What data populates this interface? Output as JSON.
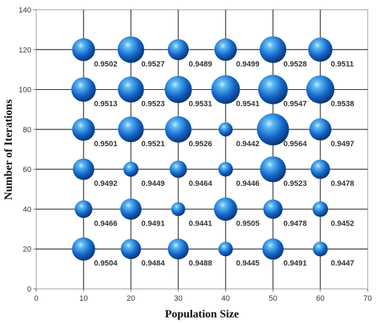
{
  "chart_data": {
    "type": "scatter",
    "xlabel": "Population Size",
    "ylabel": "Number of Iterations",
    "xlim": [
      0,
      70
    ],
    "ylim": [
      0,
      140
    ],
    "xticks": [
      "0",
      "10",
      "20",
      "30",
      "40",
      "50",
      "60",
      "70"
    ],
    "yticks": [
      "0",
      "20",
      "40",
      "60",
      "80",
      "100",
      "120",
      "140"
    ],
    "grid": true,
    "marker_color": "#1e6fc6",
    "points": [
      {
        "x": 10,
        "y": 120,
        "value": 0.9502,
        "label": "0.9502"
      },
      {
        "x": 20,
        "y": 120,
        "value": 0.9527,
        "label": "0.9527"
      },
      {
        "x": 30,
        "y": 120,
        "value": 0.9489,
        "label": "0.9489"
      },
      {
        "x": 40,
        "y": 120,
        "value": 0.9499,
        "label": "0.9499"
      },
      {
        "x": 50,
        "y": 120,
        "value": 0.9528,
        "label": "0.9528"
      },
      {
        "x": 60,
        "y": 120,
        "value": 0.9511,
        "label": "0.9511"
      },
      {
        "x": 10,
        "y": 100,
        "value": 0.9513,
        "label": "0.9513"
      },
      {
        "x": 20,
        "y": 100,
        "value": 0.9523,
        "label": "0.9523"
      },
      {
        "x": 30,
        "y": 100,
        "value": 0.9531,
        "label": "0.9531"
      },
      {
        "x": 40,
        "y": 100,
        "value": 0.9541,
        "label": "0.9541"
      },
      {
        "x": 50,
        "y": 100,
        "value": 0.9547,
        "label": "0.9547"
      },
      {
        "x": 60,
        "y": 100,
        "value": 0.9538,
        "label": "0.9538"
      },
      {
        "x": 10,
        "y": 80,
        "value": 0.9501,
        "label": "0.9501"
      },
      {
        "x": 20,
        "y": 80,
        "value": 0.9521,
        "label": "0.9521"
      },
      {
        "x": 30,
        "y": 80,
        "value": 0.9526,
        "label": "0.9526"
      },
      {
        "x": 40,
        "y": 80,
        "value": 0.9442,
        "label": "0.9442"
      },
      {
        "x": 50,
        "y": 80,
        "value": 0.9564,
        "label": "0.9564"
      },
      {
        "x": 60,
        "y": 80,
        "value": 0.9497,
        "label": "0.9497"
      },
      {
        "x": 10,
        "y": 60,
        "value": 0.9492,
        "label": "0.9492"
      },
      {
        "x": 20,
        "y": 60,
        "value": 0.9449,
        "label": "0.9449"
      },
      {
        "x": 30,
        "y": 60,
        "value": 0.9464,
        "label": "0.9464"
      },
      {
        "x": 40,
        "y": 60,
        "value": 0.9446,
        "label": "0.9446"
      },
      {
        "x": 50,
        "y": 60,
        "value": 0.9523,
        "label": "0.9523"
      },
      {
        "x": 60,
        "y": 60,
        "value": 0.9478,
        "label": "0.9478"
      },
      {
        "x": 10,
        "y": 40,
        "value": 0.9466,
        "label": "0.9466"
      },
      {
        "x": 20,
        "y": 40,
        "value": 0.9491,
        "label": "0.9491"
      },
      {
        "x": 30,
        "y": 40,
        "value": 0.9441,
        "label": "0.9441"
      },
      {
        "x": 40,
        "y": 40,
        "value": 0.9505,
        "label": "0.9505"
      },
      {
        "x": 50,
        "y": 40,
        "value": 0.9478,
        "label": "0.9478"
      },
      {
        "x": 60,
        "y": 40,
        "value": 0.9452,
        "label": "0.9452"
      },
      {
        "x": 10,
        "y": 20,
        "value": 0.9504,
        "label": "0.9504"
      },
      {
        "x": 20,
        "y": 20,
        "value": 0.9484,
        "label": "0.9484"
      },
      {
        "x": 30,
        "y": 20,
        "value": 0.9488,
        "label": "0.9488"
      },
      {
        "x": 40,
        "y": 20,
        "value": 0.9445,
        "label": "0.9445"
      },
      {
        "x": 50,
        "y": 20,
        "value": 0.9491,
        "label": "0.9491"
      },
      {
        "x": 60,
        "y": 20,
        "value": 0.9447,
        "label": "0.9447"
      }
    ]
  }
}
